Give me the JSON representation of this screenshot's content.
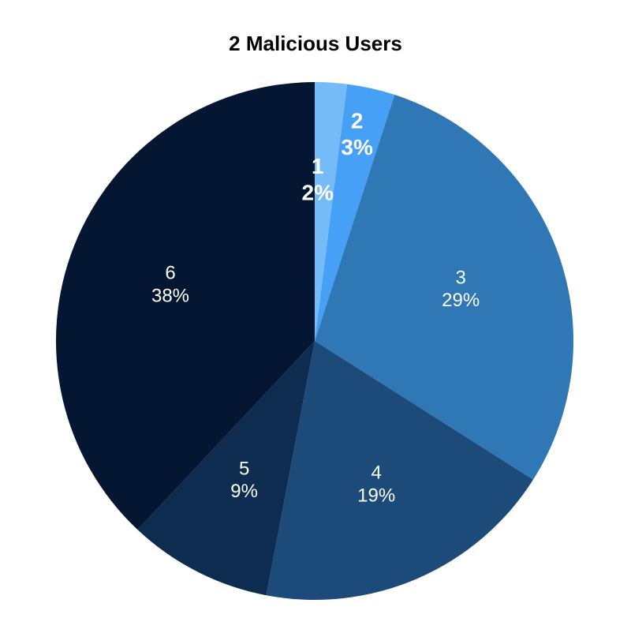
{
  "chart_data": {
    "type": "pie",
    "title": "2 Malicious Users",
    "categories": [
      "1",
      "2",
      "3",
      "4",
      "5",
      "6"
    ],
    "values": [
      2,
      3,
      29,
      19,
      9,
      38
    ],
    "value_labels": [
      "2%",
      "3%",
      "29%",
      "19%",
      "9%",
      "38%"
    ],
    "colors": [
      "#74bbf7",
      "#46a0f5",
      "#3077b5",
      "#1c4b7a",
      "#0e2c50",
      "#041631"
    ],
    "start_angle": "12 o'clock",
    "direction": "clockwise",
    "legend": "none"
  }
}
